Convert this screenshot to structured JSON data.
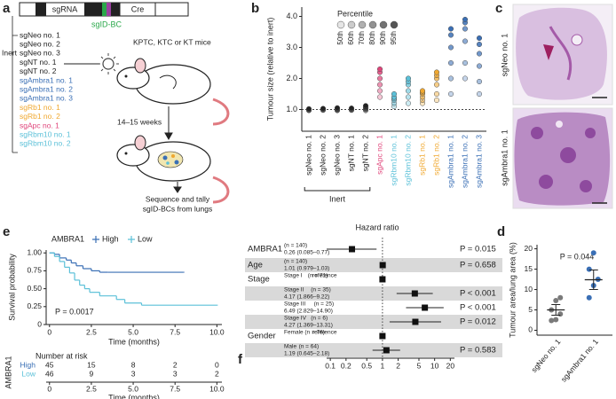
{
  "panel_a": {
    "letter": "a",
    "construct": {
      "sgrna": "sgRNA",
      "cre": "Cre",
      "barcode": "sgID-BC"
    },
    "inert_label": "Inert",
    "guides": [
      {
        "label": "sgNeo no. 1",
        "color": "#222222"
      },
      {
        "label": "sgNeo no. 2",
        "color": "#222222"
      },
      {
        "label": "sgNeo no. 3",
        "color": "#222222"
      },
      {
        "label": "sgNT no. 1",
        "color": "#222222"
      },
      {
        "label": "sgNT no. 2",
        "color": "#222222"
      },
      {
        "label": "sgAmbra1 no. 1",
        "color": "#3a6fb5"
      },
      {
        "label": "sgAmbra1 no. 2",
        "color": "#3a6fb5"
      },
      {
        "label": "sgAmbra1 no. 3",
        "color": "#3a6fb5"
      },
      {
        "label": "sgRb1 no. 1",
        "color": "#f0a830"
      },
      {
        "label": "sgRb1 no. 2",
        "color": "#f0a830"
      },
      {
        "label": "sgApc no. 1",
        "color": "#e0457b"
      },
      {
        "label": "sgRbm10 no. 1",
        "color": "#5bc0d8"
      },
      {
        "label": "sgRbm10 no. 2",
        "color": "#5bc0d8"
      }
    ],
    "mice": "KPTC, KTC or KT mice",
    "duration": "14–15 weeks",
    "readout": [
      "Sequence and tally",
      "sgID-BCs from lungs"
    ]
  },
  "panel_c": {
    "letter": "c",
    "labels": [
      "sgNeo no. 1",
      "sgAmbra1 no. 1"
    ]
  },
  "chart_data": [
    {
      "type": "percentile-dots",
      "letter": "b",
      "ylabel": "Tumour size (relative to inert)",
      "legend_title": "Percentile",
      "group_label": "Inert",
      "categories": [
        "sgNeo no. 1",
        "sgNeo no. 2",
        "sgNeo no. 3",
        "sgNT no. 1",
        "sgNT no. 2",
        "sgApc no. 1",
        "sgRbm10 no. 1",
        "sgRbm10 no. 2",
        "sgRb1 no. 1",
        "sgRb1 no. 2",
        "sgAmbra1 no. 1",
        "sgAmbra1 no. 2",
        "sgAmbra1 no. 3"
      ],
      "category_colors": [
        "#222222",
        "#222222",
        "#222222",
        "#222222",
        "#222222",
        "#e0457b",
        "#5bc0d8",
        "#5bc0d8",
        "#f0a830",
        "#f0a830",
        "#3a6fb5",
        "#3a6fb5",
        "#3a6fb5"
      ],
      "series": [
        {
          "name": "50th",
          "color": "#e6e6e6",
          "values": [
            0.97,
            0.98,
            0.97,
            0.98,
            0.97,
            1.4,
            1.1,
            1.2,
            1.2,
            1.3,
            1.5,
            2.0,
            1.5
          ]
        },
        {
          "name": "60th",
          "color": "#cccccc",
          "values": [
            0.98,
            0.99,
            0.98,
            0.99,
            1.0,
            1.6,
            1.2,
            1.4,
            1.3,
            1.5,
            2.0,
            2.5,
            1.9
          ]
        },
        {
          "name": "70th",
          "color": "#b0b0b0",
          "values": [
            0.99,
            1.0,
            1.0,
            1.0,
            1.02,
            1.8,
            1.3,
            1.6,
            1.4,
            1.8,
            2.5,
            3.2,
            2.4
          ]
        },
        {
          "name": "80th",
          "color": "#929292",
          "values": [
            1.0,
            1.0,
            1.0,
            1.01,
            1.05,
            2.0,
            1.35,
            1.8,
            1.5,
            2.0,
            3.0,
            3.6,
            2.8
          ]
        },
        {
          "name": "90th",
          "color": "#737373",
          "values": [
            1.0,
            1.01,
            1.02,
            1.02,
            1.08,
            2.2,
            1.4,
            1.9,
            1.55,
            2.1,
            3.4,
            3.8,
            3.1
          ]
        },
        {
          "name": "95th",
          "color": "#555555",
          "values": [
            1.02,
            1.03,
            1.05,
            1.04,
            1.12,
            2.3,
            1.5,
            2.0,
            1.6,
            2.2,
            3.6,
            3.9,
            3.3
          ]
        }
      ],
      "reference_line": 1,
      "ylim": [
        0.3,
        4.3
      ],
      "yticks": [
        {
          "value": 1,
          "label": "1.0"
        },
        {
          "value": 2,
          "label": "2.0"
        },
        {
          "value": 3,
          "label": "3.0"
        },
        {
          "value": 4,
          "label": "4.0"
        }
      ]
    },
    {
      "type": "survival",
      "letter": "e",
      "legend_title": "AMBRA1",
      "xlabel": "Time (months)",
      "ylabel": "Survival probability",
      "annotation": "P = 0.0017",
      "series": [
        {
          "name": "High",
          "color": "#3a6fb5",
          "x": [
            0,
            0.3,
            0.6,
            1.0,
            1.3,
            1.6,
            2.0,
            2.5,
            3.0,
            3.5,
            8.0
          ],
          "values": [
            1,
            0.98,
            0.93,
            0.9,
            0.86,
            0.82,
            0.78,
            0.75,
            0.73,
            0.73,
            0.73
          ]
        },
        {
          "name": "Low",
          "color": "#5bc0d8",
          "x": [
            0,
            0.3,
            0.6,
            0.9,
            1.2,
            1.5,
            1.8,
            2.1,
            2.4,
            3.0,
            4.0,
            4.5,
            5.5,
            10.0
          ],
          "values": [
            1,
            0.95,
            0.88,
            0.8,
            0.72,
            0.62,
            0.55,
            0.5,
            0.45,
            0.4,
            0.35,
            0.3,
            0.27,
            0.27
          ]
        }
      ],
      "xlim": [
        -0.2,
        10.3
      ],
      "xticks": [
        0,
        2.5,
        {
          "value": 5,
          "label": "5.0"
        },
        7.5,
        {
          "value": 10,
          "label": "10.0"
        }
      ],
      "ylim": [
        0,
        1.04
      ],
      "yticks": [
        0,
        0.25,
        {
          "value": 0.5,
          "label": "0.50"
        },
        0.75,
        {
          "value": 1,
          "label": "1.00"
        }
      ],
      "risk_table": {
        "title": "Number at risk",
        "row_title": "AMBRA1",
        "xlabel": "Time (months)",
        "rows": [
          {
            "name": "High",
            "color": "#3a6fb5",
            "values": [
              45,
              15,
              8,
              2,
              0
            ]
          },
          {
            "name": "Low",
            "color": "#5bc0d8",
            "values": [
              46,
              9,
              3,
              3,
              2
            ]
          }
        ]
      }
    },
    {
      "type": "dot-strip",
      "letter": "d",
      "ylabel": "Tumour area/lung area (%)",
      "annotation": "P = 0.044",
      "categories": [
        "sgNeo no. 1",
        "sgAmbra1 no. 1"
      ],
      "colors": [
        "#7a7a7a",
        "#3a6fb5"
      ],
      "points": [
        [
          2.4,
          2.6,
          4.0,
          5.0,
          7.3,
          8.0
        ],
        [
          8.0,
          11.0,
          12.5,
          15.0,
          19.0
        ]
      ],
      "means": [
        5.0,
        12.4
      ],
      "errors": [
        1.3,
        2.4
      ],
      "ylim": [
        -1.2,
        21
      ],
      "yticks": [
        0,
        5,
        10,
        15,
        20
      ]
    },
    {
      "type": "forest",
      "letter": "f",
      "title": "Hazard ratio",
      "log_scale": true,
      "xlim": [
        0.085,
        24
      ],
      "xticks": [
        0.1,
        0.2,
        0.5,
        1,
        2,
        5,
        10,
        20
      ],
      "rows": [
        {
          "group": "AMBRA1",
          "n": "(n = 140)",
          "estimate": "0.26 (0.085–0.77)",
          "hr": 0.26,
          "lo": 0.085,
          "hi": 0.77,
          "p": "P = 0.015"
        },
        {
          "group": "Age",
          "n": "(n = 140)",
          "estimate": "1.01 (0.979–1.03)",
          "hr": 1.01,
          "lo": 0.979,
          "hi": 1.03,
          "p": "P = 0.658"
        },
        {
          "group": "Stage",
          "sub": "Stage I",
          "n": "(n = 71)",
          "estimate": "reference",
          "hr": 1
        },
        {
          "sub": "Stage II",
          "n": "(n = 35)",
          "estimate": "4.17 (1.866–9.22)",
          "hr": 4.17,
          "lo": 1.866,
          "hi": 9.22,
          "p": "P < 0.001"
        },
        {
          "sub": "Stage III",
          "n": "(n = 25)",
          "estimate": "6.49 (2.829–14.90)",
          "hr": 6.49,
          "lo": 2.829,
          "hi": 14.9,
          "p": "P < 0.001"
        },
        {
          "sub": "Stage IV",
          "n": "(n = 6)",
          "estimate": "4.27 (1.369–13.31)",
          "hr": 4.27,
          "lo": 1.369,
          "hi": 13.31,
          "p": "P = 0.012"
        },
        {
          "group": "Gender",
          "sub": "Female",
          "n": "(n = 76)",
          "estimate": "reference",
          "hr": 1
        },
        {
          "sub": "Male",
          "n": "(n = 64)",
          "estimate": "1.19 (0.645–2.18)",
          "hr": 1.19,
          "lo": 0.645,
          "hi": 2.18,
          "p": "P = 0.583"
        }
      ]
    }
  ]
}
